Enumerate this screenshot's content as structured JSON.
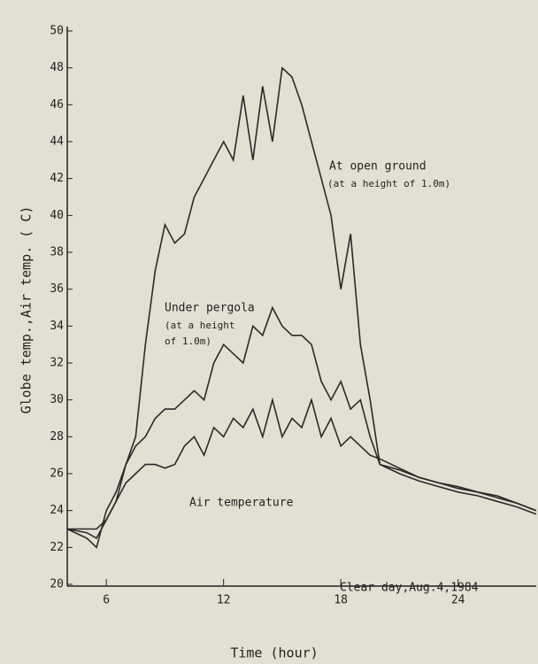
{
  "chart_data": {
    "type": "line",
    "y_label": "Globe temp.,Air temp. ( C)",
    "x_label": "Time (hour)",
    "annotations": [
      "At open ground",
      "(at a height of 1.0m)",
      "Under pergola",
      "(at a height",
      "of 1.0m)",
      "Air temperature",
      "Clear day,Aug.4,1984"
    ],
    "x": [
      4,
      5,
      5.5,
      6,
      6.5,
      7,
      7.5,
      8,
      8.5,
      9,
      9.5,
      10,
      10.5,
      11,
      11.5,
      12,
      12.5,
      13,
      13.5,
      14,
      14.5,
      15,
      15.5,
      16,
      16.5,
      17,
      17.5,
      18,
      18.5,
      19,
      19.5,
      20,
      21,
      22,
      23,
      24,
      25,
      26,
      27,
      28
    ],
    "series": [
      {
        "name": "At open ground",
        "color": "#2a2a2a",
        "values": [
          23,
          22.8,
          22.5,
          23.5,
          24.5,
          26.5,
          28,
          33,
          37,
          39.5,
          38.5,
          39,
          41,
          42,
          43,
          44,
          43,
          46.5,
          43,
          47,
          44,
          48,
          47.5,
          46,
          44,
          42,
          40,
          36,
          39,
          33,
          30,
          26.5,
          26,
          25.6,
          25.3,
          25,
          24.8,
          24.5,
          24.2,
          23.8
        ]
      },
      {
        "name": "Under pergola",
        "color": "#2a2a2a",
        "values": [
          23,
          22.5,
          22,
          24,
          25,
          26.5,
          27.5,
          28,
          29,
          29.5,
          29.5,
          30,
          30.5,
          30,
          32,
          33,
          32.5,
          32,
          34,
          33.5,
          35,
          34,
          33.5,
          33.5,
          33,
          31,
          30,
          31,
          29.5,
          30,
          28,
          26.5,
          26.2,
          25.8,
          25.5,
          25.2,
          25,
          24.7,
          24.4,
          24
        ]
      },
      {
        "name": "Air temperature",
        "color": "#2a2a2a",
        "values": [
          23,
          23,
          23,
          23.5,
          24.5,
          25.5,
          26,
          26.5,
          26.5,
          26.3,
          26.5,
          27.5,
          28,
          27,
          28.5,
          28,
          29,
          28.5,
          29.5,
          28,
          30,
          28,
          29,
          28.5,
          30,
          28,
          29,
          27.5,
          28,
          27.5,
          27,
          26.8,
          26.3,
          25.8,
          25.5,
          25.3,
          25,
          24.8,
          24.4,
          24
        ]
      }
    ],
    "xlim": [
      4,
      28
    ],
    "xticks": [
      6,
      12,
      18,
      24
    ],
    "ylim": [
      20,
      50
    ],
    "yticks": [
      20,
      22,
      24,
      26,
      28,
      30,
      32,
      34,
      36,
      38,
      40,
      42,
      44,
      46,
      48,
      50
    ],
    "grid": false
  }
}
